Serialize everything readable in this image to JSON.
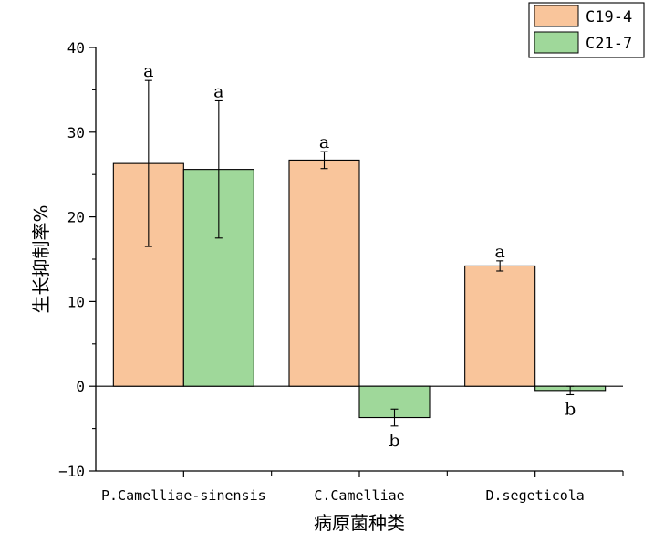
{
  "chart_data": {
    "type": "bar",
    "title": "",
    "xlabel": "病原菌种类",
    "ylabel": "生长抑制率%",
    "ylim": [
      -10,
      40
    ],
    "yticks": [
      -10,
      0,
      10,
      20,
      30,
      40
    ],
    "grid": false,
    "legend_position": "top-right",
    "categories": [
      "P.Camelliae-sinensis",
      "C.Camelliae",
      "D.segeticola"
    ],
    "series": [
      {
        "name": "C19-4",
        "color": "#f9c59b",
        "values": [
          26.3,
          26.7,
          14.2
        ],
        "errors": [
          9.8,
          1.0,
          0.6
        ],
        "significance": [
          "a",
          "a",
          "a"
        ]
      },
      {
        "name": "C21-7",
        "color": "#9fd89a",
        "values": [
          25.6,
          -3.7,
          -0.5
        ],
        "errors": [
          8.1,
          1.0,
          0.5
        ],
        "significance": [
          "a",
          "b",
          "b"
        ]
      }
    ]
  }
}
